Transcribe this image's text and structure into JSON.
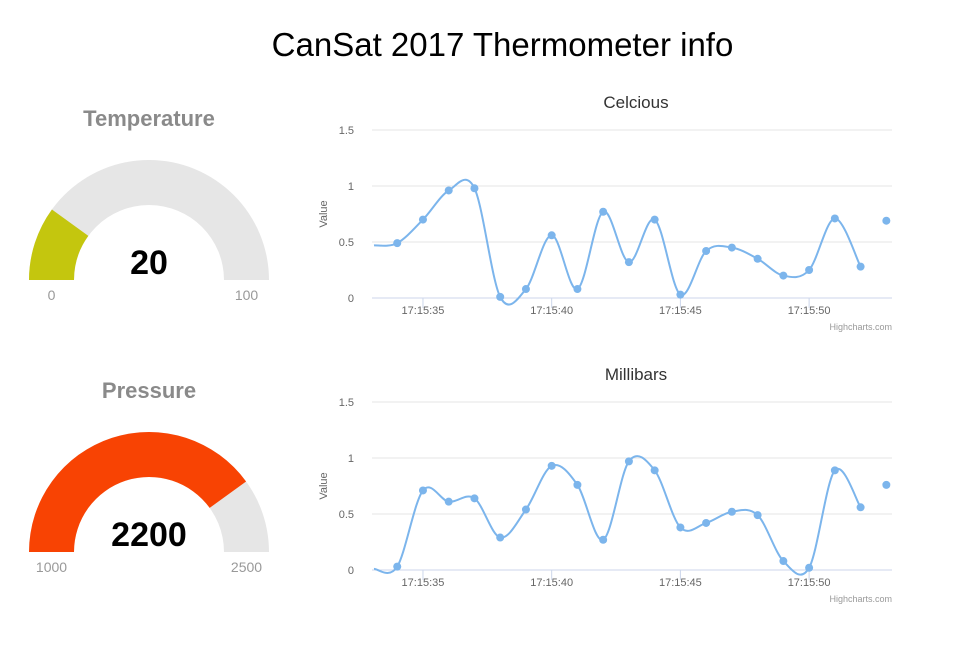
{
  "page": {
    "title": "CanSat 2017 Thermometer info"
  },
  "gauges": [
    {
      "title": "Temperature",
      "value": 20,
      "display": "20",
      "min": 0,
      "max": 100,
      "min_label": "0",
      "max_label": "100",
      "fill_color": "#c4c60e"
    },
    {
      "title": "Pressure",
      "value": 2200,
      "display": "2200",
      "min": 1000,
      "max": 2500,
      "min_label": "1000",
      "max_label": "2500",
      "fill_color": "#f84303"
    }
  ],
  "credits": "Highcharts.com",
  "chart_data": [
    {
      "type": "line",
      "title": "Celcious",
      "ylabel": "Value",
      "xlabel": "",
      "ylim": [
        0,
        1.5
      ],
      "yticks": [
        "0",
        "0.5",
        "1",
        "1.5"
      ],
      "xticks": [
        "17:15:35",
        "17:15:40",
        "17:15:45",
        "17:15:50"
      ],
      "grid": true,
      "legend": "none",
      "line_color": "#7cb5ec",
      "series": [
        {
          "x": [
            "17:15:34",
            "17:15:35",
            "17:15:36",
            "17:15:37",
            "17:15:38",
            "17:15:39",
            "17:15:40",
            "17:15:41",
            "17:15:42",
            "17:15:43",
            "17:15:44",
            "17:15:45",
            "17:15:46",
            "17:15:47",
            "17:15:48",
            "17:15:49",
            "17:15:50",
            "17:15:51",
            "17:15:52",
            "17:15:53"
          ],
          "values": [
            0.49,
            0.7,
            0.96,
            0.98,
            0.01,
            0.08,
            0.56,
            0.08,
            0.77,
            0.32,
            0.7,
            0.03,
            0.42,
            0.45,
            0.35,
            0.2,
            0.25,
            0.71,
            0.28,
            0.69
          ]
        }
      ]
    },
    {
      "type": "line",
      "title": "Millibars",
      "ylabel": "Value",
      "xlabel": "",
      "ylim": [
        0,
        1.5
      ],
      "yticks": [
        "0",
        "0.5",
        "1",
        "1.5"
      ],
      "xticks": [
        "17:15:35",
        "17:15:40",
        "17:15:45",
        "17:15:50"
      ],
      "grid": true,
      "legend": "none",
      "line_color": "#7cb5ec",
      "series": [
        {
          "x": [
            "17:15:34",
            "17:15:35",
            "17:15:36",
            "17:15:37",
            "17:15:38",
            "17:15:39",
            "17:15:40",
            "17:15:41",
            "17:15:42",
            "17:15:43",
            "17:15:44",
            "17:15:45",
            "17:15:46",
            "17:15:47",
            "17:15:48",
            "17:15:49",
            "17:15:50",
            "17:15:51",
            "17:15:52",
            "17:15:53"
          ],
          "values": [
            0.03,
            0.71,
            0.61,
            0.64,
            0.29,
            0.54,
            0.93,
            0.76,
            0.27,
            0.97,
            0.89,
            0.38,
            0.42,
            0.52,
            0.49,
            0.08,
            0.02,
            0.89,
            0.56,
            0.76
          ]
        }
      ]
    }
  ]
}
